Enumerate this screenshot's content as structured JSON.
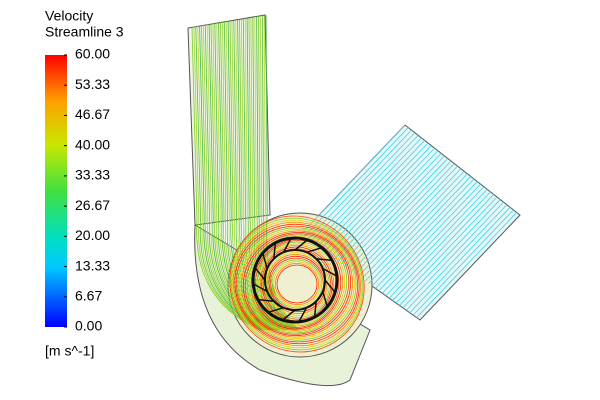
{
  "legend": {
    "title": "Velocity",
    "subtitle": "Streamline 3",
    "range": [
      0,
      60
    ],
    "ticks": [
      {
        "value": 60,
        "label": "60.00"
      },
      {
        "value": 53.33,
        "label": "53.33"
      },
      {
        "value": 46.67,
        "label": "46.67"
      },
      {
        "value": 40,
        "label": "40.00"
      },
      {
        "value": 33.33,
        "label": "33.33"
      },
      {
        "value": 26.67,
        "label": "26.67"
      },
      {
        "value": 20,
        "label": "20.00"
      },
      {
        "value": 13.33,
        "label": "13.33"
      },
      {
        "value": 6.67,
        "label": "6.67"
      },
      {
        "value": 0,
        "label": "0.00"
      }
    ],
    "unit": "[m s^-1]"
  }
}
